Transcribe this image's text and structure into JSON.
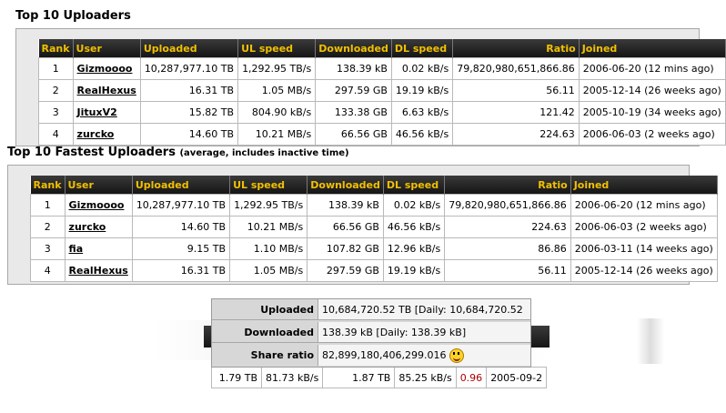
{
  "top_uploaders": {
    "title": "Top 10 Uploaders",
    "columns": [
      "Rank",
      "User",
      "Uploaded",
      "UL speed",
      "Downloaded",
      "DL speed",
      "Ratio",
      "Joined"
    ],
    "rows": [
      {
        "rank": "1",
        "user": "Gizmoooo",
        "uploaded": "10,287,977.10 TB",
        "ul_speed": "1,292.95 TB/s",
        "downloaded": "138.39 kB",
        "dl_speed": "0.02 kB/s",
        "ratio": "79,820,980,651,866.86",
        "joined": "2006-06-20 (12 mins ago)"
      },
      {
        "rank": "2",
        "user": "RealHexus",
        "uploaded": "16.31 TB",
        "ul_speed": "1.05 MB/s",
        "downloaded": "297.59 GB",
        "dl_speed": "19.19 kB/s",
        "ratio": "56.11",
        "joined": "2005-12-14 (26 weeks ago)"
      },
      {
        "rank": "3",
        "user": "JituxV2",
        "uploaded": "15.82 TB",
        "ul_speed": "804.90 kB/s",
        "downloaded": "133.38 GB",
        "dl_speed": "6.63 kB/s",
        "ratio": "121.42",
        "joined": "2005-10-19 (34 weeks ago)"
      },
      {
        "rank": "4",
        "user": "zurcko",
        "uploaded": "14.60 TB",
        "ul_speed": "10.21 MB/s",
        "downloaded": "66.56 GB",
        "dl_speed": "46.56 kB/s",
        "ratio": "224.63",
        "joined": "2006-06-03 (2 weeks ago)"
      }
    ]
  },
  "fastest_uploaders": {
    "title": "Top 10 Fastest Uploaders",
    "note": "(average, includes inactive time)",
    "columns": [
      "Rank",
      "User",
      "Uploaded",
      "UL speed",
      "Downloaded",
      "DL speed",
      "Ratio",
      "Joined"
    ],
    "rows": [
      {
        "rank": "1",
        "user": "Gizmoooo",
        "uploaded": "10,287,977.10 TB",
        "ul_speed": "1,292.95 TB/s",
        "downloaded": "138.39 kB",
        "dl_speed": "0.02 kB/s",
        "ratio": "79,820,980,651,866.86",
        "joined": "2006-06-20 (12 mins ago)"
      },
      {
        "rank": "2",
        "user": "zurcko",
        "uploaded": "14.60 TB",
        "ul_speed": "10.21 MB/s",
        "downloaded": "66.56 GB",
        "dl_speed": "46.56 kB/s",
        "ratio": "224.63",
        "joined": "2006-06-03 (2 weeks ago)"
      },
      {
        "rank": "3",
        "user": "fia",
        "uploaded": "9.15 TB",
        "ul_speed": "1.10 MB/s",
        "downloaded": "107.82 GB",
        "dl_speed": "12.96 kB/s",
        "ratio": "86.86",
        "joined": "2006-03-11 (14 weeks ago)"
      },
      {
        "rank": "4",
        "user": "RealHexus",
        "uploaded": "16.31 TB",
        "ul_speed": "1.05 MB/s",
        "downloaded": "297.59 GB",
        "dl_speed": "19.19 kB/s",
        "ratio": "56.11",
        "joined": "2005-12-14 (26 weeks ago)"
      }
    ]
  },
  "user_stats": {
    "uploaded_label": "Uploaded",
    "uploaded_value": "10,684,720.52 TB [Daily: 10,684,720.52 TB]",
    "downloaded_label": "Downloaded",
    "downloaded_value": "138.39 kB [Daily: 138.39 kB]",
    "share_ratio_label": "Share ratio",
    "share_ratio_value": "82,899,180,406,299.016",
    "share_ratio_icon": "laughing-smiley-icon"
  },
  "partial_row": {
    "uploaded": "1.79 TB",
    "ul_speed": "81.73 kB/s",
    "downloaded": "1.87 TB",
    "dl_speed": "85.25 kB/s",
    "ratio": "0.96",
    "joined": "2005-09-2",
    "ratio_color": "#aa0000"
  },
  "colors": {
    "header_text": "#f1c000",
    "header_bg": "#1e1e1e",
    "frame_bg": "#e9e9e9"
  }
}
